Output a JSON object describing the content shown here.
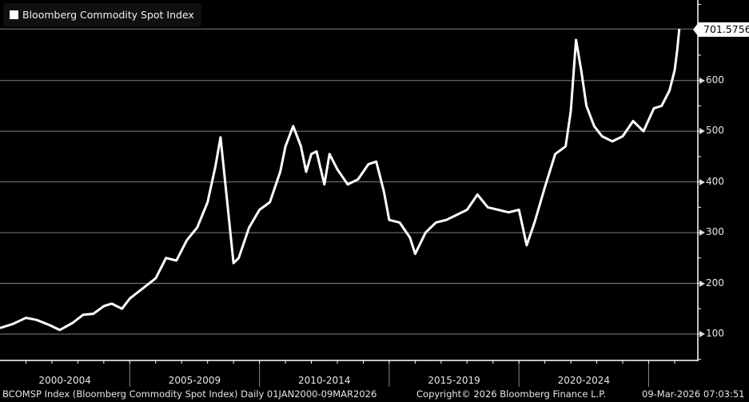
{
  "legend": {
    "label": "Bloomberg Commodity Spot Index",
    "swatch_color": "#ffffff"
  },
  "last_value_label": "701.5756",
  "footer": {
    "left": "BCOMSP Index (Bloomberg Commodity Spot Index) Daily 01JAN2000-09MAR2026",
    "center": "Copyright© 2026 Bloomberg Finance L.P.",
    "right": "09-Mar-2026 07:03:51"
  },
  "colors": {
    "background": "#000000",
    "line": "#ffffff",
    "grid": "#808080",
    "axis": "#ffffff"
  },
  "chart_data": {
    "type": "line",
    "title": "Bloomberg Commodity Spot Index",
    "xlabel": "",
    "ylabel": "",
    "x_tick_labels": [
      "2000-2004",
      "2005-2009",
      "2010-2014",
      "2015-2019",
      "2020-2024"
    ],
    "y_ticks": [
      100,
      200,
      300,
      400,
      500,
      600
    ],
    "ylim": [
      50,
      750
    ],
    "xlim": [
      2000.0,
      2026.2
    ],
    "grid": true,
    "legend_position": "top-left",
    "last_value": 701.5756,
    "series": [
      {
        "name": "Bloomberg Commodity Spot Index",
        "x": [
          2000.0,
          2000.5,
          2001.0,
          2001.4,
          2001.9,
          2002.3,
          2002.8,
          2003.2,
          2003.6,
          2004.0,
          2004.3,
          2004.7,
          2005.0,
          2005.5,
          2006.0,
          2006.4,
          2006.8,
          2007.2,
          2007.6,
          2008.0,
          2008.3,
          2008.5,
          2008.8,
          2009.0,
          2009.2,
          2009.6,
          2010.0,
          2010.4,
          2010.8,
          2011.0,
          2011.3,
          2011.6,
          2011.8,
          2012.0,
          2012.2,
          2012.5,
          2012.7,
          2013.0,
          2013.4,
          2013.8,
          2014.2,
          2014.5,
          2014.8,
          2015.0,
          2015.4,
          2015.8,
          2016.0,
          2016.4,
          2016.8,
          2017.2,
          2017.6,
          2018.0,
          2018.4,
          2018.8,
          2019.2,
          2019.6,
          2020.0,
          2020.3,
          2020.6,
          2021.0,
          2021.4,
          2021.8,
          2022.0,
          2022.2,
          2022.4,
          2022.6,
          2022.9,
          2023.2,
          2023.6,
          2024.0,
          2024.4,
          2024.8,
          2025.2,
          2025.5,
          2025.8,
          2026.0,
          2026.1,
          2026.18
        ],
        "values": [
          112,
          120,
          132,
          128,
          118,
          108,
          122,
          138,
          140,
          155,
          160,
          150,
          170,
          190,
          210,
          250,
          245,
          285,
          310,
          360,
          430,
          488,
          340,
          240,
          250,
          310,
          345,
          360,
          420,
          470,
          510,
          470,
          420,
          455,
          460,
          395,
          455,
          425,
          395,
          405,
          435,
          440,
          380,
          325,
          320,
          290,
          258,
          300,
          320,
          325,
          335,
          345,
          375,
          350,
          345,
          340,
          345,
          275,
          320,
          390,
          455,
          470,
          540,
          680,
          620,
          550,
          510,
          490,
          480,
          490,
          520,
          500,
          545,
          550,
          580,
          620,
          660,
          701.58
        ]
      }
    ]
  }
}
